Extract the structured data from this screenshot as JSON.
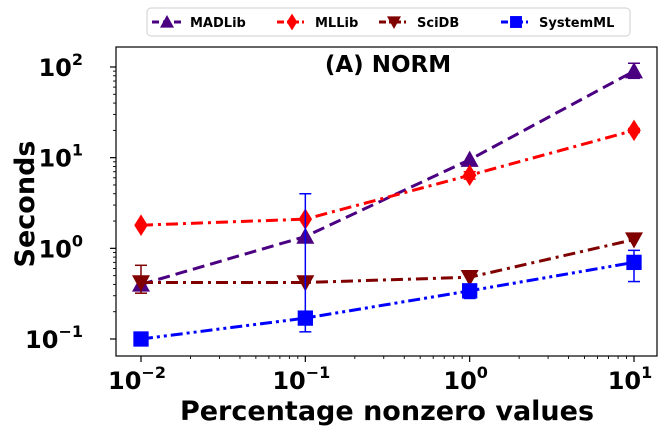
{
  "chart_data": {
    "type": "line",
    "title": "(A) NORM",
    "xlabel": "Percentage nonzero values",
    "ylabel": "Seconds",
    "xscale": "log",
    "yscale": "log",
    "x": [
      0.01,
      0.1,
      1,
      10
    ],
    "xticks": [
      {
        "base": "10",
        "exp": "−2",
        "value": 0.01
      },
      {
        "base": "10",
        "exp": "−1",
        "value": 0.1
      },
      {
        "base": "10",
        "exp": "0",
        "value": 1
      },
      {
        "base": "10",
        "exp": "1",
        "value": 10
      }
    ],
    "yticks": [
      {
        "base": "10",
        "exp": "−1",
        "value": 0.1
      },
      {
        "base": "10",
        "exp": "0",
        "value": 1
      },
      {
        "base": "10",
        "exp": "1",
        "value": 10
      },
      {
        "base": "10",
        "exp": "2",
        "value": 100
      }
    ],
    "legend_position": "top, outside plot",
    "grid": false,
    "series": [
      {
        "name": "MADLib",
        "color": "#4b0082",
        "marker": "triangle-up",
        "linestyle": "dashed",
        "values": [
          0.4,
          1.35,
          9.5,
          90
        ],
        "errors": [
          [
            0.4,
            0.4
          ],
          [
            1.35,
            1.35
          ],
          [
            9.5,
            9.5
          ],
          [
            75,
            110
          ]
        ]
      },
      {
        "name": "MLLib",
        "color": "#ff0000",
        "marker": "diamond",
        "linestyle": "dashdot",
        "values": [
          1.8,
          2.1,
          6.4,
          20
        ],
        "errors": [
          [
            1.8,
            1.8
          ],
          [
            2.1,
            2.1
          ],
          [
            5.8,
            7.0
          ],
          [
            19,
            21
          ]
        ]
      },
      {
        "name": "SciDB",
        "color": "#800000",
        "marker": "triangle-down",
        "linestyle": "dashdot",
        "values": [
          0.42,
          0.42,
          0.48,
          1.25
        ],
        "errors": [
          [
            0.32,
            0.65
          ],
          [
            0.42,
            0.42
          ],
          [
            0.48,
            0.48
          ],
          [
            1.25,
            1.25
          ]
        ]
      },
      {
        "name": "SystemML",
        "color": "#0000ff",
        "marker": "square",
        "linestyle": "dashdotdot",
        "values": [
          0.1,
          0.17,
          0.34,
          0.7
        ],
        "errors": [
          [
            0.1,
            0.1
          ],
          [
            0.12,
            4.0
          ],
          [
            0.28,
            0.4
          ],
          [
            0.43,
            0.95
          ]
        ]
      }
    ]
  }
}
